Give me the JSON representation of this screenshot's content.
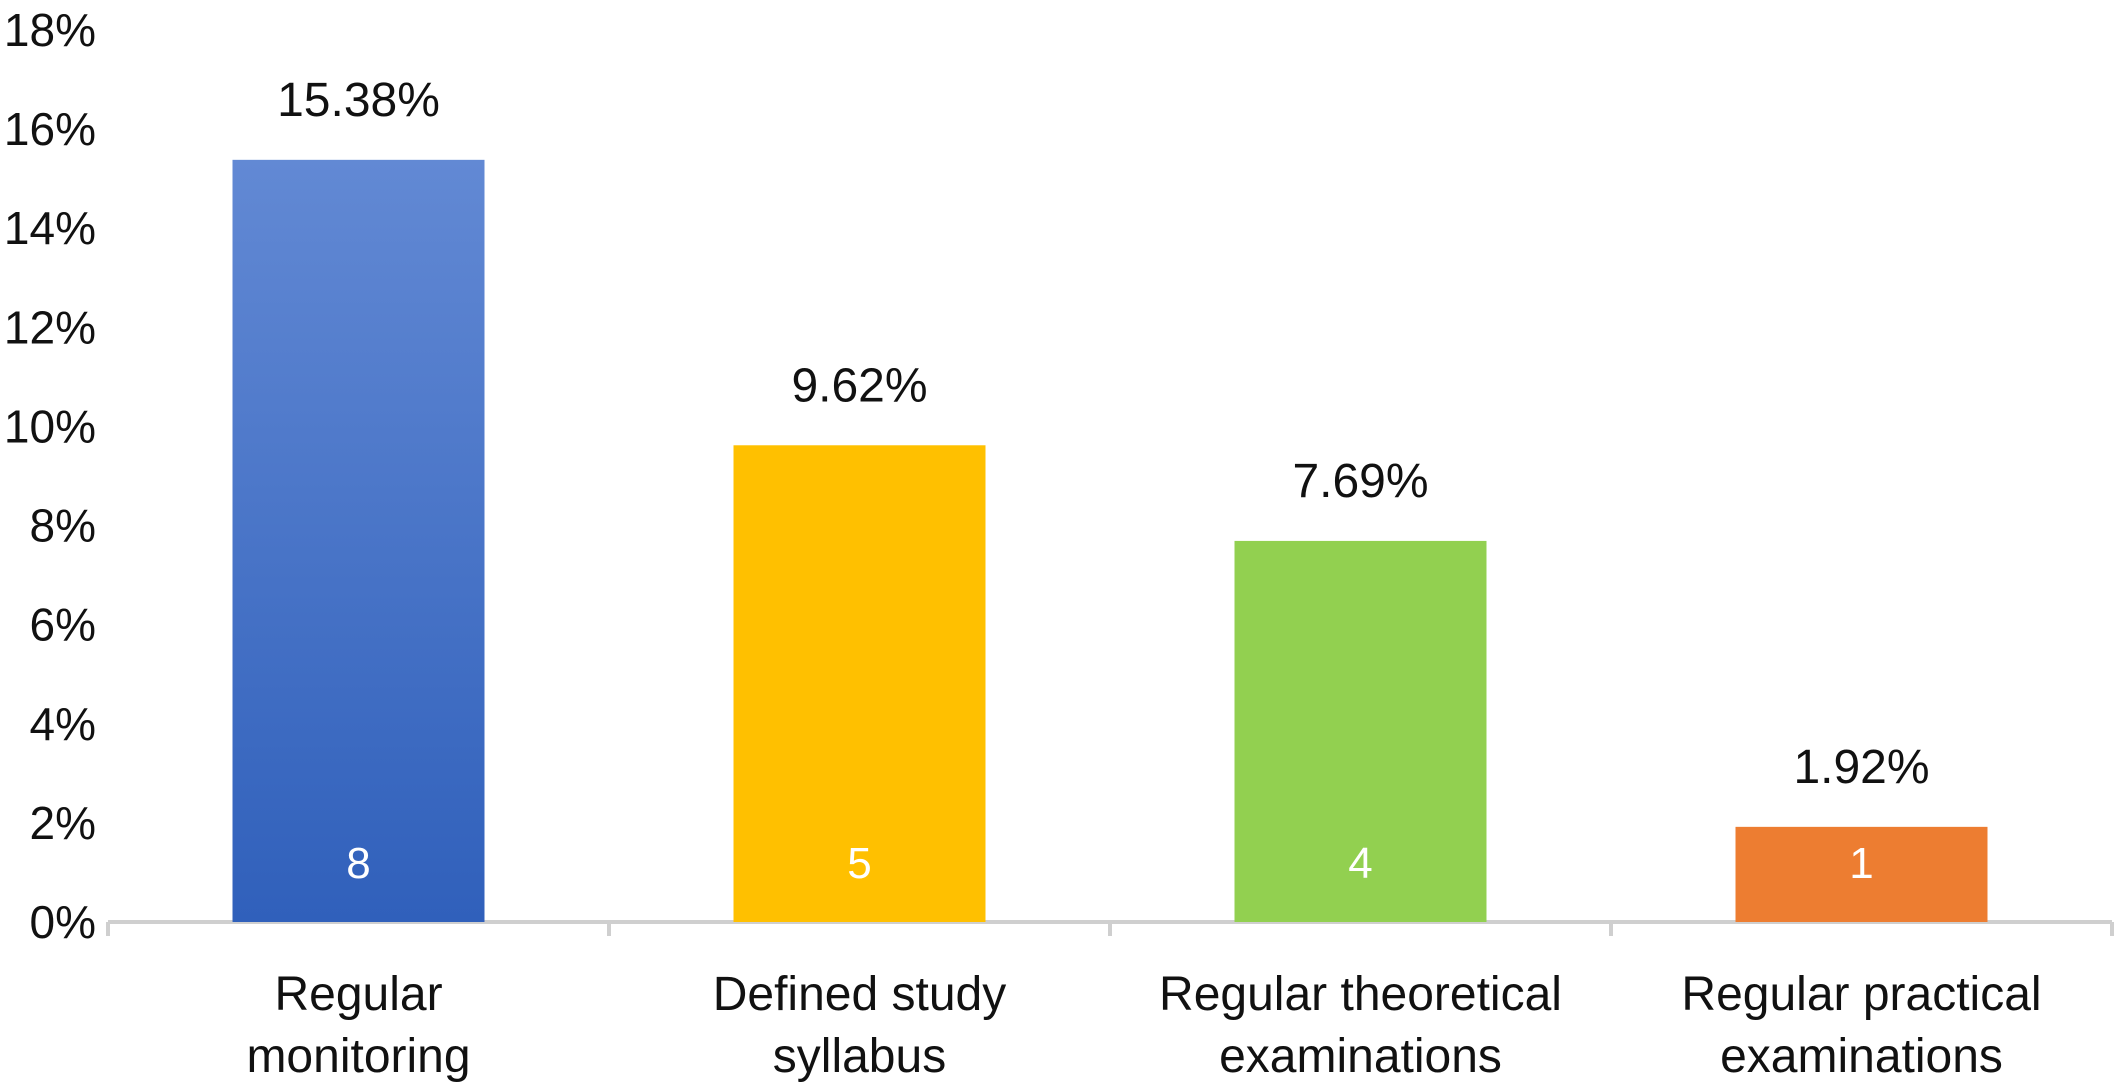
{
  "chart_data": {
    "type": "bar",
    "categories": [
      [
        "Regular",
        "monitoring"
      ],
      [
        "Defined study",
        "syllabus"
      ],
      [
        "Regular theoretical",
        "examinations"
      ],
      [
        "Regular practical",
        "examinations"
      ]
    ],
    "values": [
      15.38,
      9.62,
      7.69,
      1.92
    ],
    "value_labels": [
      "15.38%",
      "9.62%",
      "7.69%",
      "1.92%"
    ],
    "counts": [
      "8",
      "5",
      "4",
      "1"
    ],
    "colors": [
      "#4472c4",
      "#ffc000",
      "#92d050",
      "#ed7d31"
    ],
    "ylim": [
      0,
      18
    ],
    "yticks": [
      0,
      2,
      4,
      6,
      8,
      10,
      12,
      14,
      16,
      18
    ],
    "ytick_labels": [
      "0%",
      "2%",
      "4%",
      "6%",
      "8%",
      "10%",
      "12%",
      "14%",
      "16%",
      "18%"
    ],
    "grid": false,
    "legend": "none"
  }
}
